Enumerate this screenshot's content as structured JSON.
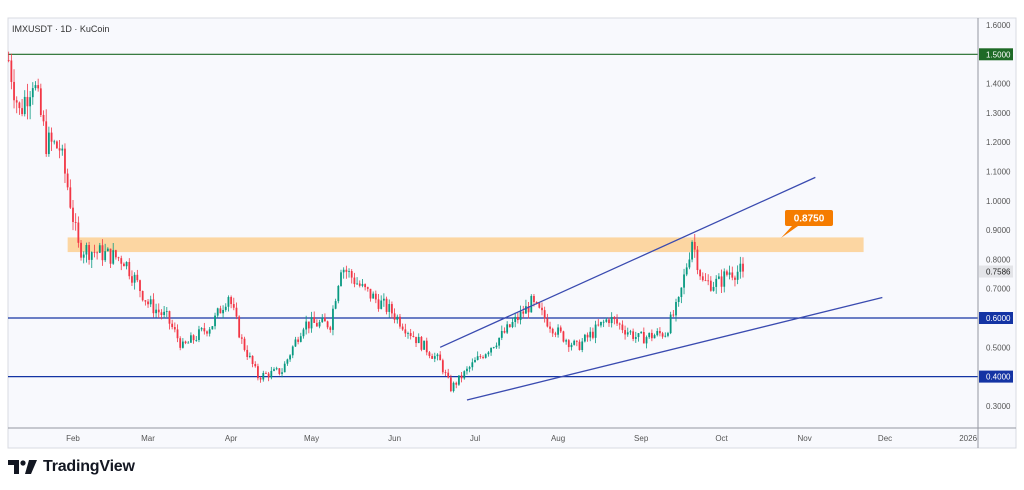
{
  "header": {
    "symbol_line": "IMXUSDT · 1D · KuCoin"
  },
  "branding": {
    "name": "TradingView"
  },
  "chart_data": {
    "type": "candlestick",
    "symbol": "IMXUSDT",
    "interval": "1D",
    "exchange": "KuCoin",
    "year": 2025,
    "price_axis": {
      "ticks": [
        "1.6000",
        "1.5000",
        "1.4000",
        "1.3000",
        "1.2000",
        "1.1000",
        "1.0000",
        "0.9000",
        "0.8000",
        "0.7000",
        "0.6000",
        "0.5000",
        "0.4000",
        "0.3000"
      ],
      "range": [
        0.26,
        1.62
      ]
    },
    "time_axis": {
      "ticks": [
        {
          "label": "Feb",
          "date": "2025-02-01"
        },
        {
          "label": "Mar",
          "date": "2025-03-01"
        },
        {
          "label": "Apr",
          "date": "2025-04-01"
        },
        {
          "label": "May",
          "date": "2025-05-01"
        },
        {
          "label": "Jun",
          "date": "2025-06-01"
        },
        {
          "label": "Jul",
          "date": "2025-07-01"
        },
        {
          "label": "Aug",
          "date": "2025-08-01"
        },
        {
          "label": "Sep",
          "date": "2025-09-01"
        },
        {
          "label": "Oct",
          "date": "2025-10-01"
        },
        {
          "label": "Nov",
          "date": "2025-11-01"
        },
        {
          "label": "Dec",
          "date": "2025-12-01"
        },
        {
          "label": "2026",
          "date": "2026-01-01"
        }
      ]
    },
    "price_path": [
      [
        "2025-01-08",
        1.48
      ],
      [
        "2025-01-12",
        1.3
      ],
      [
        "2025-01-17",
        1.42
      ],
      [
        "2025-01-22",
        1.2
      ],
      [
        "2025-01-27",
        1.18
      ],
      [
        "2025-01-30",
        1.05
      ],
      [
        "2025-02-03",
        0.84
      ],
      [
        "2025-02-12",
        0.82
      ],
      [
        "2025-02-20",
        0.8
      ],
      [
        "2025-03-01",
        0.65
      ],
      [
        "2025-03-08",
        0.6
      ],
      [
        "2025-03-14",
        0.5
      ],
      [
        "2025-03-25",
        0.58
      ],
      [
        "2025-03-31",
        0.68
      ],
      [
        "2025-04-05",
        0.52
      ],
      [
        "2025-04-11",
        0.4
      ],
      [
        "2025-04-20",
        0.42
      ],
      [
        "2025-04-28",
        0.58
      ],
      [
        "2025-05-08",
        0.58
      ],
      [
        "2025-05-12",
        0.78
      ],
      [
        "2025-05-20",
        0.7
      ],
      [
        "2025-05-31",
        0.62
      ],
      [
        "2025-06-10",
        0.52
      ],
      [
        "2025-06-18",
        0.45
      ],
      [
        "2025-06-22",
        0.36
      ],
      [
        "2025-07-01",
        0.45
      ],
      [
        "2025-07-12",
        0.55
      ],
      [
        "2025-07-22",
        0.65
      ],
      [
        "2025-08-01",
        0.55
      ],
      [
        "2025-08-08",
        0.5
      ],
      [
        "2025-08-20",
        0.6
      ],
      [
        "2025-08-31",
        0.53
      ],
      [
        "2025-09-10",
        0.55
      ],
      [
        "2025-09-15",
        0.65
      ],
      [
        "2025-09-20",
        0.87
      ],
      [
        "2025-09-24",
        0.72
      ],
      [
        "2025-09-30",
        0.72
      ],
      [
        "2025-10-04",
        0.76
      ],
      [
        "2025-10-09",
        0.7586
      ]
    ],
    "last_price": "0.7586",
    "horizontal_levels": [
      {
        "price": "1.5000",
        "color": "#1e6a26"
      },
      {
        "price": "0.6000",
        "color": "#1434a4"
      },
      {
        "price": "0.4000",
        "color": "#1434a4"
      }
    ],
    "resistance_zone": {
      "from": 0.825,
      "to": 0.875,
      "color": "#fcd6a2",
      "start": "2025-01-30",
      "end": "2025-11-23"
    },
    "callout": {
      "label": "0.8750",
      "color": "#f57c00"
    },
    "trendlines": [
      {
        "name": "upper",
        "from": [
          "2025-06-18",
          0.5
        ],
        "to": [
          "2025-11-05",
          1.08
        ]
      },
      {
        "name": "lower",
        "from": [
          "2025-06-28",
          0.32
        ],
        "to": [
          "2025-11-30",
          0.67
        ]
      }
    ],
    "colors": {
      "up": "#089981",
      "down": "#f23645",
      "background": "#f8f9fd"
    }
  }
}
